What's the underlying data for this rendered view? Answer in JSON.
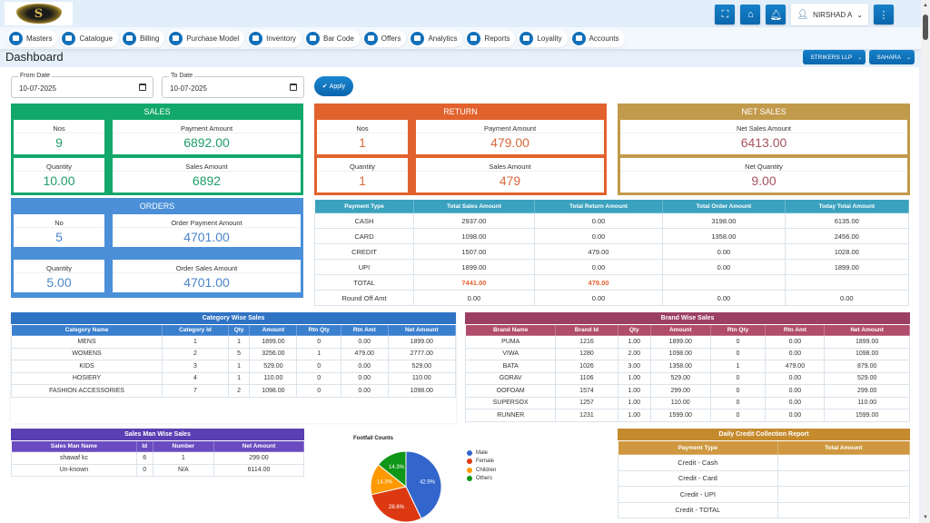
{
  "header": {
    "logo_letter": "S",
    "user_name": "NIRSHAD A",
    "icons": [
      "fullscreen-icon",
      "home-icon",
      "bell-icon",
      "user-icon",
      "more-vertical-icon"
    ]
  },
  "nav": {
    "items": [
      {
        "label": "Masters",
        "icon": "masters-icon"
      },
      {
        "label": "Catalogue",
        "icon": "catalogue-icon"
      },
      {
        "label": "Billing",
        "icon": "billing-icon"
      },
      {
        "label": "Purchase Model",
        "icon": "purchase-icon"
      },
      {
        "label": "Inventory",
        "icon": "inventory-icon"
      },
      {
        "label": "Bar Code",
        "icon": "barcode-icon"
      },
      {
        "label": "Offers",
        "icon": "offers-icon"
      },
      {
        "label": "Analytics",
        "icon": "analytics-icon"
      },
      {
        "label": "Reports",
        "icon": "reports-icon"
      },
      {
        "label": "Loyality",
        "icon": "loyality-icon"
      },
      {
        "label": "Accounts",
        "icon": "accounts-icon"
      }
    ]
  },
  "page": {
    "title": "Dashboard",
    "company": "STRIKERS LLP",
    "branch": "SAHARA"
  },
  "filters": {
    "from_label": "From Date",
    "from_value": "10-07-2025",
    "to_label": "To Date",
    "to_value": "10-07-2025",
    "apply_label": "Apply"
  },
  "sales": {
    "title": "SALES",
    "nos_label": "Nos",
    "nos": "9",
    "payment_label": "Payment Amount",
    "payment": "6892.00",
    "qty_label": "Quantity",
    "qty": "10.00",
    "amount_label": "Sales Amount",
    "amount": "6892"
  },
  "return": {
    "title": "RETURN",
    "nos_label": "Nos",
    "nos": "1",
    "payment_label": "Payment Amount",
    "payment": "479.00",
    "qty_label": "Quantity",
    "qty": "1",
    "amount_label": "Sales Amount",
    "amount": "479"
  },
  "net_sales": {
    "title": "NET SALES",
    "amount_label": "Net Sales Amount",
    "amount": "6413.00",
    "qty_label": "Net Quantity",
    "qty": "9.00"
  },
  "orders": {
    "title": "ORDERS",
    "no_label": "No",
    "no": "5",
    "payment_label": "Order Payment Amount",
    "payment": "4701.00",
    "qty_label": "Quantity",
    "qty": "5.00",
    "amount_label": "Order Sales Amount",
    "amount": "4701.00"
  },
  "payment_table": {
    "headers": [
      "Payment Type",
      "Total Sales Amount",
      "Total Return Amount",
      "Total Order Amount",
      "Today Total Amount"
    ],
    "rows": [
      [
        "CASH",
        "2937.00",
        "0.00",
        "3198.00",
        "6135.00"
      ],
      [
        "CARD",
        "1098.00",
        "0.00",
        "1358.00",
        "2456.00"
      ],
      [
        "CREDIT",
        "1507.00",
        "479.00",
        "0.00",
        "1028.00"
      ],
      [
        "UPI",
        "1899.00",
        "0.00",
        "0.00",
        "1899.00"
      ],
      [
        "TOTAL",
        "7441.00",
        "479.00",
        "",
        ""
      ],
      [
        "Round Off Amt",
        "0.00",
        "0.00",
        "0.00",
        "0.00"
      ]
    ]
  },
  "category_sales": {
    "title": "Category Wise Sales",
    "headers": [
      "Category Name",
      "Category Id",
      "Qty",
      "Amount",
      "Rtn Qty",
      "Rtn Amt",
      "Net Amount"
    ],
    "rows": [
      [
        "MENS",
        "1",
        "1",
        "1899.00",
        "0",
        "0.00",
        "1899.00"
      ],
      [
        "WOMENS",
        "2",
        "5",
        "3256.00",
        "1",
        "479.00",
        "2777.00"
      ],
      [
        "KIDS",
        "3",
        "1",
        "529.00",
        "0",
        "0.00",
        "529.00"
      ],
      [
        "HOSIERY",
        "4",
        "1",
        "110.00",
        "0",
        "0.00",
        "110.00"
      ],
      [
        "FASHION ACCESSORIES",
        "7",
        "2",
        "1098.00",
        "0",
        "0.00",
        "1098.00"
      ]
    ]
  },
  "brand_sales": {
    "title": "Brand Wise Sales",
    "headers": [
      "Brand Name",
      "Brand Id",
      "Qty",
      "Amount",
      "Rtn Qty",
      "Rtn Amt",
      "Net Amount"
    ],
    "rows": [
      [
        "PUMA",
        "1216",
        "1.00",
        "1899.00",
        "0",
        "0.00",
        "1899.00"
      ],
      [
        "VIWA",
        "1280",
        "2.00",
        "1098.00",
        "0",
        "0.00",
        "1098.00"
      ],
      [
        "BATA",
        "1026",
        "3.00",
        "1358.00",
        "1",
        "479.00",
        "879.00"
      ],
      [
        "GORAV",
        "1106",
        "1.00",
        "529.00",
        "0",
        "0.00",
        "529.00"
      ],
      [
        "OOFOAM",
        "1574",
        "1.00",
        "299.00",
        "0",
        "0.00",
        "299.00"
      ],
      [
        "SUPERSOX",
        "1257",
        "1.00",
        "110.00",
        "0",
        "0.00",
        "110.00"
      ],
      [
        "RUNNER",
        "1231",
        "1.00",
        "1599.00",
        "0",
        "0.00",
        "1599.00"
      ]
    ]
  },
  "salesman_sales": {
    "title": "Sales Man Wise Sales",
    "headers": [
      "Sales Man Name",
      "Id",
      "Number",
      "Net Amount"
    ],
    "rows": [
      [
        "shawaf kc",
        "6",
        "1",
        "299.00"
      ],
      [
        "Un-known",
        "0",
        "N/A",
        "6114.00"
      ]
    ]
  },
  "credit_report": {
    "title": "Daily Credit Collection Report",
    "headers": [
      "Payment Type",
      "Total Amount"
    ],
    "rows": [
      [
        "Credit - Cash",
        ""
      ],
      [
        "Credit - Card",
        ""
      ],
      [
        "Credit - UPI",
        ""
      ],
      [
        "Credit - TOTAL",
        ""
      ]
    ]
  },
  "chart_data": {
    "type": "pie",
    "title": "Footfall Counts",
    "categories": [
      "Male",
      "Female",
      "Children",
      "Others"
    ],
    "values": [
      42.9,
      28.6,
      14.3,
      14.3
    ],
    "labels": [
      "42.9%",
      "28.6%",
      "14.3%",
      "14.3%"
    ],
    "colors": [
      "#3366cc",
      "#dc3912",
      "#ff9900",
      "#109618"
    ],
    "legend": "right"
  }
}
